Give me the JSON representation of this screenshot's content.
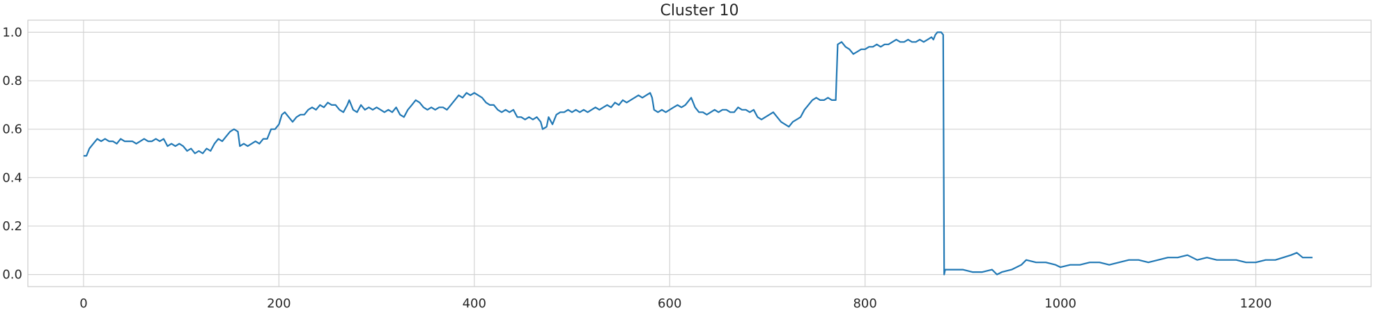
{
  "chart_data": {
    "type": "line",
    "title": "Cluster 10",
    "xlabel": "",
    "ylabel": "",
    "xlim": [
      -57,
      1318
    ],
    "ylim": [
      -0.05,
      1.05
    ],
    "xticks": [
      0,
      200,
      400,
      600,
      800,
      1000,
      1200
    ],
    "yticks": [
      0.0,
      0.2,
      0.4,
      0.6,
      0.8,
      1.0
    ],
    "xtick_labels": [
      "0",
      "200",
      "400",
      "600",
      "800",
      "1000",
      "1200"
    ],
    "ytick_labels": [
      "0.0",
      "0.2",
      "0.4",
      "0.6",
      "0.8",
      "1.0"
    ],
    "grid": true,
    "legend": "none",
    "series": [
      {
        "color": "#1f77b4",
        "points": [
          [
            0,
            0.49
          ],
          [
            3,
            0.49
          ],
          [
            6,
            0.52
          ],
          [
            10,
            0.54
          ],
          [
            14,
            0.56
          ],
          [
            18,
            0.55
          ],
          [
            22,
            0.56
          ],
          [
            26,
            0.55
          ],
          [
            30,
            0.55
          ],
          [
            34,
            0.54
          ],
          [
            38,
            0.56
          ],
          [
            42,
            0.55
          ],
          [
            46,
            0.55
          ],
          [
            50,
            0.55
          ],
          [
            54,
            0.54
          ],
          [
            58,
            0.55
          ],
          [
            62,
            0.56
          ],
          [
            66,
            0.55
          ],
          [
            70,
            0.55
          ],
          [
            74,
            0.56
          ],
          [
            78,
            0.55
          ],
          [
            82,
            0.56
          ],
          [
            86,
            0.53
          ],
          [
            90,
            0.54
          ],
          [
            94,
            0.53
          ],
          [
            98,
            0.54
          ],
          [
            102,
            0.53
          ],
          [
            106,
            0.51
          ],
          [
            110,
            0.52
          ],
          [
            114,
            0.5
          ],
          [
            118,
            0.51
          ],
          [
            122,
            0.5
          ],
          [
            126,
            0.52
          ],
          [
            130,
            0.51
          ],
          [
            134,
            0.54
          ],
          [
            138,
            0.56
          ],
          [
            142,
            0.55
          ],
          [
            146,
            0.57
          ],
          [
            150,
            0.59
          ],
          [
            154,
            0.6
          ],
          [
            158,
            0.59
          ],
          [
            160,
            0.53
          ],
          [
            164,
            0.54
          ],
          [
            168,
            0.53
          ],
          [
            172,
            0.54
          ],
          [
            176,
            0.55
          ],
          [
            180,
            0.54
          ],
          [
            184,
            0.56
          ],
          [
            188,
            0.56
          ],
          [
            192,
            0.6
          ],
          [
            196,
            0.6
          ],
          [
            200,
            0.62
          ],
          [
            203,
            0.66
          ],
          [
            206,
            0.67
          ],
          [
            210,
            0.65
          ],
          [
            214,
            0.63
          ],
          [
            218,
            0.65
          ],
          [
            222,
            0.66
          ],
          [
            226,
            0.66
          ],
          [
            230,
            0.68
          ],
          [
            234,
            0.69
          ],
          [
            238,
            0.68
          ],
          [
            242,
            0.7
          ],
          [
            246,
            0.69
          ],
          [
            250,
            0.71
          ],
          [
            254,
            0.7
          ],
          [
            258,
            0.7
          ],
          [
            262,
            0.68
          ],
          [
            266,
            0.67
          ],
          [
            270,
            0.7
          ],
          [
            272,
            0.72
          ],
          [
            276,
            0.68
          ],
          [
            280,
            0.67
          ],
          [
            284,
            0.7
          ],
          [
            288,
            0.68
          ],
          [
            292,
            0.69
          ],
          [
            296,
            0.68
          ],
          [
            300,
            0.69
          ],
          [
            304,
            0.68
          ],
          [
            308,
            0.67
          ],
          [
            312,
            0.68
          ],
          [
            316,
            0.67
          ],
          [
            320,
            0.69
          ],
          [
            324,
            0.66
          ],
          [
            328,
            0.65
          ],
          [
            332,
            0.68
          ],
          [
            336,
            0.7
          ],
          [
            340,
            0.72
          ],
          [
            344,
            0.71
          ],
          [
            348,
            0.69
          ],
          [
            352,
            0.68
          ],
          [
            356,
            0.69
          ],
          [
            360,
            0.68
          ],
          [
            364,
            0.69
          ],
          [
            368,
            0.69
          ],
          [
            372,
            0.68
          ],
          [
            376,
            0.7
          ],
          [
            380,
            0.72
          ],
          [
            384,
            0.74
          ],
          [
            388,
            0.73
          ],
          [
            392,
            0.75
          ],
          [
            396,
            0.74
          ],
          [
            400,
            0.75
          ],
          [
            404,
            0.74
          ],
          [
            408,
            0.73
          ],
          [
            412,
            0.71
          ],
          [
            416,
            0.7
          ],
          [
            420,
            0.7
          ],
          [
            424,
            0.68
          ],
          [
            428,
            0.67
          ],
          [
            432,
            0.68
          ],
          [
            436,
            0.67
          ],
          [
            440,
            0.68
          ],
          [
            444,
            0.65
          ],
          [
            448,
            0.65
          ],
          [
            452,
            0.64
          ],
          [
            456,
            0.65
          ],
          [
            460,
            0.64
          ],
          [
            464,
            0.65
          ],
          [
            468,
            0.63
          ],
          [
            470,
            0.6
          ],
          [
            474,
            0.61
          ],
          [
            476,
            0.65
          ],
          [
            480,
            0.62
          ],
          [
            484,
            0.66
          ],
          [
            488,
            0.67
          ],
          [
            492,
            0.67
          ],
          [
            496,
            0.68
          ],
          [
            500,
            0.67
          ],
          [
            504,
            0.68
          ],
          [
            508,
            0.67
          ],
          [
            512,
            0.68
          ],
          [
            516,
            0.67
          ],
          [
            520,
            0.68
          ],
          [
            524,
            0.69
          ],
          [
            528,
            0.68
          ],
          [
            532,
            0.69
          ],
          [
            536,
            0.7
          ],
          [
            540,
            0.69
          ],
          [
            544,
            0.71
          ],
          [
            548,
            0.7
          ],
          [
            552,
            0.72
          ],
          [
            556,
            0.71
          ],
          [
            560,
            0.72
          ],
          [
            564,
            0.73
          ],
          [
            568,
            0.74
          ],
          [
            572,
            0.73
          ],
          [
            576,
            0.74
          ],
          [
            580,
            0.75
          ],
          [
            582,
            0.73
          ],
          [
            584,
            0.68
          ],
          [
            588,
            0.67
          ],
          [
            592,
            0.68
          ],
          [
            596,
            0.67
          ],
          [
            600,
            0.68
          ],
          [
            604,
            0.69
          ],
          [
            608,
            0.7
          ],
          [
            612,
            0.69
          ],
          [
            616,
            0.7
          ],
          [
            620,
            0.72
          ],
          [
            622,
            0.73
          ],
          [
            626,
            0.69
          ],
          [
            630,
            0.67
          ],
          [
            634,
            0.67
          ],
          [
            638,
            0.66
          ],
          [
            642,
            0.67
          ],
          [
            646,
            0.68
          ],
          [
            650,
            0.67
          ],
          [
            654,
            0.68
          ],
          [
            658,
            0.68
          ],
          [
            662,
            0.67
          ],
          [
            666,
            0.67
          ],
          [
            670,
            0.69
          ],
          [
            674,
            0.68
          ],
          [
            678,
            0.68
          ],
          [
            682,
            0.67
          ],
          [
            686,
            0.68
          ],
          [
            690,
            0.65
          ],
          [
            694,
            0.64
          ],
          [
            698,
            0.65
          ],
          [
            702,
            0.66
          ],
          [
            706,
            0.67
          ],
          [
            710,
            0.65
          ],
          [
            714,
            0.63
          ],
          [
            718,
            0.62
          ],
          [
            722,
            0.61
          ],
          [
            726,
            0.63
          ],
          [
            730,
            0.64
          ],
          [
            734,
            0.65
          ],
          [
            738,
            0.68
          ],
          [
            742,
            0.7
          ],
          [
            746,
            0.72
          ],
          [
            750,
            0.73
          ],
          [
            754,
            0.72
          ],
          [
            758,
            0.72
          ],
          [
            762,
            0.73
          ],
          [
            766,
            0.72
          ],
          [
            770,
            0.72
          ],
          [
            772,
            0.95
          ],
          [
            776,
            0.96
          ],
          [
            780,
            0.94
          ],
          [
            784,
            0.93
          ],
          [
            788,
            0.91
          ],
          [
            792,
            0.92
          ],
          [
            796,
            0.93
          ],
          [
            800,
            0.93
          ],
          [
            804,
            0.94
          ],
          [
            808,
            0.94
          ],
          [
            812,
            0.95
          ],
          [
            816,
            0.94
          ],
          [
            820,
            0.95
          ],
          [
            824,
            0.95
          ],
          [
            828,
            0.96
          ],
          [
            832,
            0.97
          ],
          [
            836,
            0.96
          ],
          [
            840,
            0.96
          ],
          [
            844,
            0.97
          ],
          [
            848,
            0.96
          ],
          [
            852,
            0.96
          ],
          [
            856,
            0.97
          ],
          [
            860,
            0.96
          ],
          [
            864,
            0.97
          ],
          [
            868,
            0.98
          ],
          [
            870,
            0.97
          ],
          [
            872,
            0.99
          ],
          [
            874,
            1.0
          ],
          [
            878,
            1.0
          ],
          [
            880,
            0.99
          ],
          [
            881,
            0.0
          ],
          [
            882,
            0.02
          ],
          [
            886,
            0.02
          ],
          [
            892,
            0.02
          ],
          [
            900,
            0.02
          ],
          [
            910,
            0.01
          ],
          [
            920,
            0.01
          ],
          [
            930,
            0.02
          ],
          [
            935,
            0.0
          ],
          [
            940,
            0.01
          ],
          [
            950,
            0.02
          ],
          [
            960,
            0.04
          ],
          [
            965,
            0.06
          ],
          [
            975,
            0.05
          ],
          [
            985,
            0.05
          ],
          [
            995,
            0.04
          ],
          [
            1000,
            0.03
          ],
          [
            1010,
            0.04
          ],
          [
            1020,
            0.04
          ],
          [
            1030,
            0.05
          ],
          [
            1040,
            0.05
          ],
          [
            1050,
            0.04
          ],
          [
            1060,
            0.05
          ],
          [
            1070,
            0.06
          ],
          [
            1080,
            0.06
          ],
          [
            1090,
            0.05
          ],
          [
            1100,
            0.06
          ],
          [
            1110,
            0.07
          ],
          [
            1120,
            0.07
          ],
          [
            1130,
            0.08
          ],
          [
            1135,
            0.07
          ],
          [
            1140,
            0.06
          ],
          [
            1150,
            0.07
          ],
          [
            1160,
            0.06
          ],
          [
            1170,
            0.06
          ],
          [
            1180,
            0.06
          ],
          [
            1190,
            0.05
          ],
          [
            1200,
            0.05
          ],
          [
            1210,
            0.06
          ],
          [
            1220,
            0.06
          ],
          [
            1228,
            0.07
          ],
          [
            1236,
            0.08
          ],
          [
            1242,
            0.09
          ],
          [
            1248,
            0.07
          ],
          [
            1256,
            0.07
          ],
          [
            1258,
            0.07
          ]
        ]
      }
    ]
  }
}
